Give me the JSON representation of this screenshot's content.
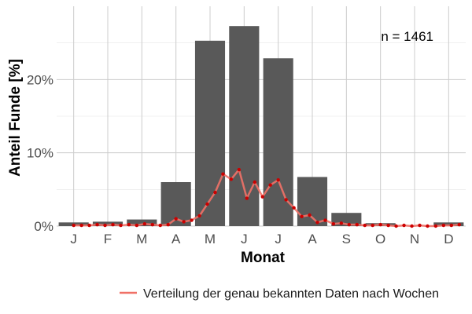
{
  "chart_data": {
    "type": "bar",
    "xlabel": "Monat",
    "ylabel": "Anteil Funde [%]",
    "annotation": "n = 1461",
    "categories": [
      "J",
      "F",
      "M",
      "A",
      "M",
      "J",
      "J",
      "A",
      "S",
      "O",
      "N",
      "D"
    ],
    "values": [
      0.5,
      0.6,
      0.9,
      6.0,
      25.3,
      27.3,
      22.9,
      6.7,
      1.8,
      0.4,
      0.0,
      0.5
    ],
    "ylim": [
      0,
      30
    ],
    "yticks": [
      0,
      10,
      20
    ],
    "ytick_labels": [
      "0%",
      "10%",
      "20%"
    ],
    "grid": true,
    "bar_color": "#595959",
    "line_series": {
      "name": "Verteilung der genau bekannten Daten nach Wochen",
      "color": "#f07167",
      "point_color": "#cc0000",
      "x_unit": "month",
      "x": [
        1.0,
        1.23,
        1.46,
        1.69,
        1.92,
        2.15,
        2.38,
        2.62,
        2.85,
        3.08,
        3.31,
        3.54,
        3.77,
        4.0,
        4.23,
        4.46,
        4.69,
        4.92,
        5.15,
        5.38,
        5.62,
        5.85,
        6.08,
        6.31,
        6.54,
        6.77,
        7.0,
        7.23,
        7.46,
        7.69,
        7.92,
        8.15,
        8.38,
        8.62,
        8.85,
        9.08,
        9.31,
        9.54,
        9.77,
        10.0,
        10.23,
        10.46,
        10.69,
        10.92,
        11.15,
        11.38,
        11.62,
        11.85,
        12.08,
        12.31
      ],
      "y": [
        0.1,
        0.1,
        0.1,
        0.2,
        0.1,
        0.2,
        0.1,
        0.2,
        0.1,
        0.3,
        0.2,
        0.1,
        0.2,
        1.0,
        0.6,
        0.8,
        1.4,
        3.0,
        4.6,
        7.1,
        6.4,
        7.7,
        3.8,
        6.0,
        4.0,
        5.6,
        6.3,
        3.6,
        2.5,
        1.3,
        1.5,
        0.5,
        0.8,
        0.3,
        0.4,
        0.2,
        0.2,
        0.1,
        0.1,
        0.2,
        0.1,
        0.0,
        0.1,
        0.0,
        0.1,
        0.0,
        0.0,
        0.1,
        0.1,
        0.2
      ]
    },
    "legend_position": "bottom-right"
  }
}
